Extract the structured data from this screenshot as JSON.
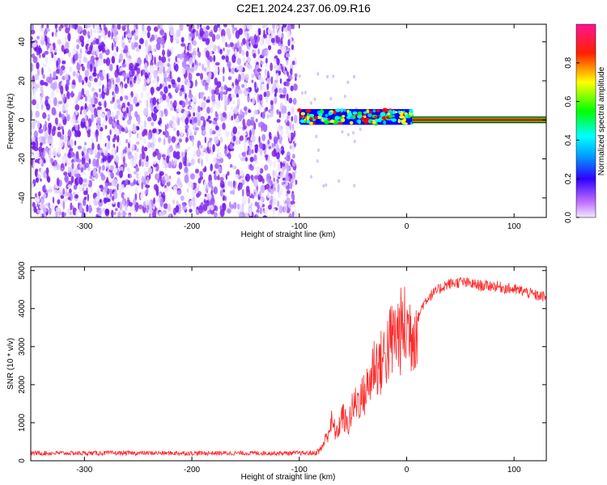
{
  "title": "C2E1.2024.237.06.09.R16",
  "chart_data": [
    {
      "type": "heatmap",
      "xlabel": "Height of straight line (km)",
      "ylabel": "Frequency (Hz)",
      "xlim": [
        -350,
        130
      ],
      "ylim": [
        -50,
        49
      ],
      "x_ticks": [
        -300,
        -200,
        -100,
        0,
        100
      ],
      "y_ticks": [
        -40,
        -20,
        0,
        20,
        40
      ],
      "colorbar": {
        "label": "Normalized spectral amplitude",
        "range": [
          0,
          1
        ],
        "ticks": [
          0.0,
          0.2,
          0.4,
          0.6,
          0.8
        ],
        "colors": [
          "#f0e8ff",
          "#8a2be2",
          "#0000ff",
          "#00ffff",
          "#00ff00",
          "#ffff00",
          "#ff0000",
          "#ff1493"
        ]
      },
      "regions": [
        {
          "x": [
            -350,
            -103
          ],
          "freq": [
            -50,
            49
          ],
          "amplitude": 0.15,
          "description_color": "#8a2be2"
        },
        {
          "x": [
            -100,
            5
          ],
          "freq_center": 1.5,
          "freq_halfwidth": 4,
          "amplitude": 0.8
        },
        {
          "x": [
            5,
            130
          ],
          "freq_center": 0,
          "freq_halfwidth": 2,
          "amplitude": 0.85
        }
      ]
    },
    {
      "type": "line",
      "xlabel": "Height of straight line (km)",
      "ylabel": "SNR (10 * v/v)",
      "xlim": [
        -350,
        130
      ],
      "ylim": [
        0,
        5100
      ],
      "x_ticks": [
        -300,
        -200,
        -100,
        0,
        100
      ],
      "y_ticks": [
        0,
        1000,
        2000,
        3000,
        4000,
        5000
      ],
      "series": [
        {
          "color": "#ff2a2a",
          "x": [
            -350,
            -300,
            -250,
            -200,
            -150,
            -100,
            -85,
            -80,
            -75,
            -70,
            -65,
            -60,
            -55,
            -50,
            -45,
            -40,
            -35,
            -30,
            -25,
            -20,
            -15,
            -10,
            -5,
            0,
            5,
            10,
            15,
            20,
            25,
            30,
            35,
            40,
            50,
            60,
            70,
            80,
            90,
            100,
            110,
            120,
            130
          ],
          "y": [
            200,
            200,
            200,
            200,
            200,
            200,
            200,
            300,
            600,
            1000,
            700,
            1200,
            900,
            1400,
            1600,
            1700,
            2000,
            2600,
            2500,
            2800,
            3100,
            3300,
            3400,
            3500,
            3400,
            3700,
            4100,
            4300,
            4400,
            4500,
            4600,
            4650,
            4700,
            4650,
            4600,
            4600,
            4550,
            4500,
            4450,
            4350,
            4300
          ]
        }
      ]
    }
  ]
}
